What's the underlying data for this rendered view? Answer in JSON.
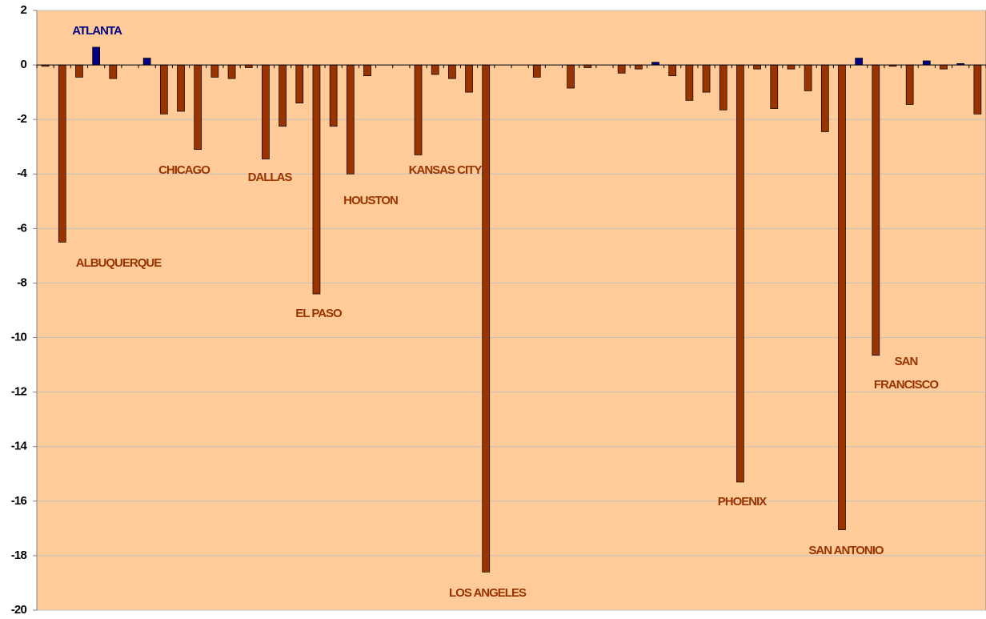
{
  "chart_data": {
    "type": "bar",
    "categories": [
      null,
      "ALBUQUERQUE",
      null,
      "ATLANTA",
      null,
      null,
      null,
      null,
      null,
      "CHICAGO",
      null,
      null,
      null,
      "DALLAS",
      null,
      null,
      "EL PASO",
      null,
      "HOUSTON",
      null,
      null,
      null,
      "KANSAS CITY",
      null,
      null,
      null,
      "LOS ANGELES",
      null,
      null,
      null,
      null,
      null,
      null,
      null,
      null,
      null,
      null,
      null,
      null,
      null,
      null,
      "PHOENIX",
      null,
      null,
      null,
      null,
      null,
      "SAN ANTONIO",
      null,
      "SAN FRANCISCO",
      null,
      null,
      null,
      null,
      null,
      null
    ],
    "values": [
      -0.05,
      -6.5,
      -0.45,
      0.65,
      -0.5,
      0,
      0.25,
      -1.8,
      -1.7,
      -3.1,
      -0.45,
      -0.5,
      -0.1,
      -3.45,
      -2.25,
      -1.4,
      -8.4,
      -2.25,
      -4.0,
      -0.4,
      0,
      0,
      -3.3,
      -0.35,
      -0.5,
      -1.0,
      -18.6,
      0,
      0,
      -0.45,
      0,
      -0.85,
      -0.1,
      0,
      -0.3,
      -0.15,
      0.1,
      -0.4,
      -1.3,
      -1.0,
      -1.65,
      -15.3,
      -0.15,
      -1.6,
      -0.15,
      -0.95,
      -2.45,
      -17.05,
      0.25,
      -10.65,
      -0.05,
      -1.45,
      0.15,
      -0.15,
      0.05,
      -1.8
    ],
    "negative_color": "#993300",
    "positive_color": "#000080",
    "ylim": [
      -20,
      2
    ],
    "yticks": [
      -20,
      -18,
      -16,
      -14,
      -12,
      -10,
      -8,
      -6,
      -4,
      -2,
      0,
      2
    ],
    "grid": true
  }
}
